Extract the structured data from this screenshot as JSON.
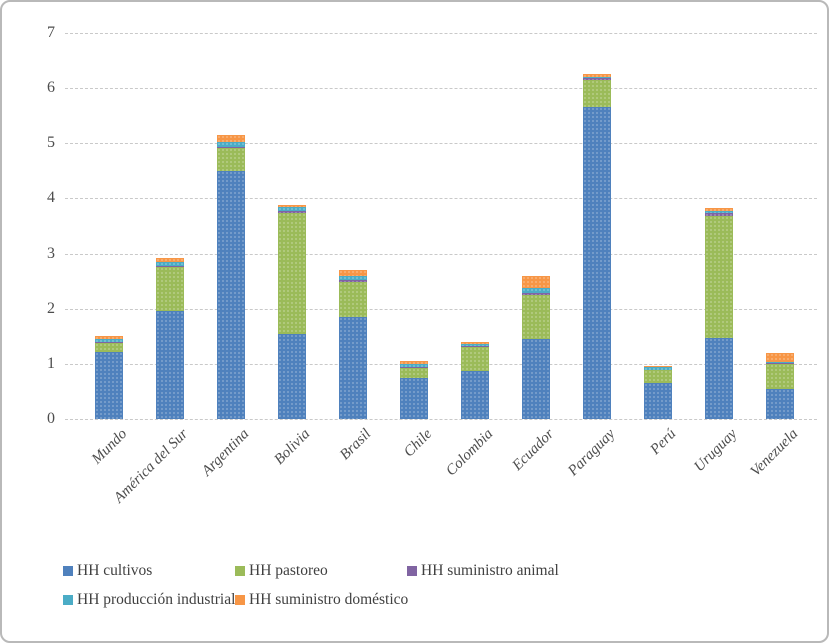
{
  "chart_data": {
    "type": "bar",
    "stacked": true,
    "title": "",
    "xlabel": "",
    "ylabel": "",
    "ylim": [
      0,
      7
    ],
    "yticks": [
      0,
      1,
      2,
      3,
      4,
      5,
      6,
      7
    ],
    "grid": "horizontal-dashed",
    "legend_position": "bottom",
    "categories": [
      "Mundo",
      "América del Sur",
      "Argentina",
      "Bolivia",
      "Brasil",
      "Chile",
      "Colombia",
      "Ecuador",
      "Paraguay",
      "Perú",
      "Uruguay",
      "Venezuela"
    ],
    "series": [
      {
        "name": "HH cultivos",
        "color": "#4F81BD",
        "values": [
          1.22,
          1.95,
          4.5,
          1.55,
          1.85,
          0.75,
          0.87,
          1.45,
          5.65,
          0.66,
          1.47,
          0.54
        ]
      },
      {
        "name": "HH pastoreo",
        "color": "#9BBB59",
        "values": [
          0.15,
          0.8,
          0.42,
          2.18,
          0.63,
          0.18,
          0.44,
          0.8,
          0.5,
          0.22,
          2.22,
          0.45
        ]
      },
      {
        "name": "HH suministro animal",
        "color": "#8064A2",
        "values": [
          0.02,
          0.03,
          0.02,
          0.04,
          0.04,
          0.01,
          0.01,
          0.04,
          0.04,
          0.01,
          0.04,
          0.02
        ]
      },
      {
        "name": "HH producción industrial",
        "color": "#4BACC6",
        "values": [
          0.06,
          0.06,
          0.08,
          0.07,
          0.08,
          0.06,
          0.04,
          0.08,
          0.02,
          0.05,
          0.05,
          0.02
        ]
      },
      {
        "name": "HH suministro doméstico",
        "color": "#F79646",
        "values": [
          0.05,
          0.08,
          0.13,
          0.04,
          0.1,
          0.05,
          0.03,
          0.23,
          0.04,
          0.03,
          0.04,
          0.17
        ]
      }
    ]
  }
}
